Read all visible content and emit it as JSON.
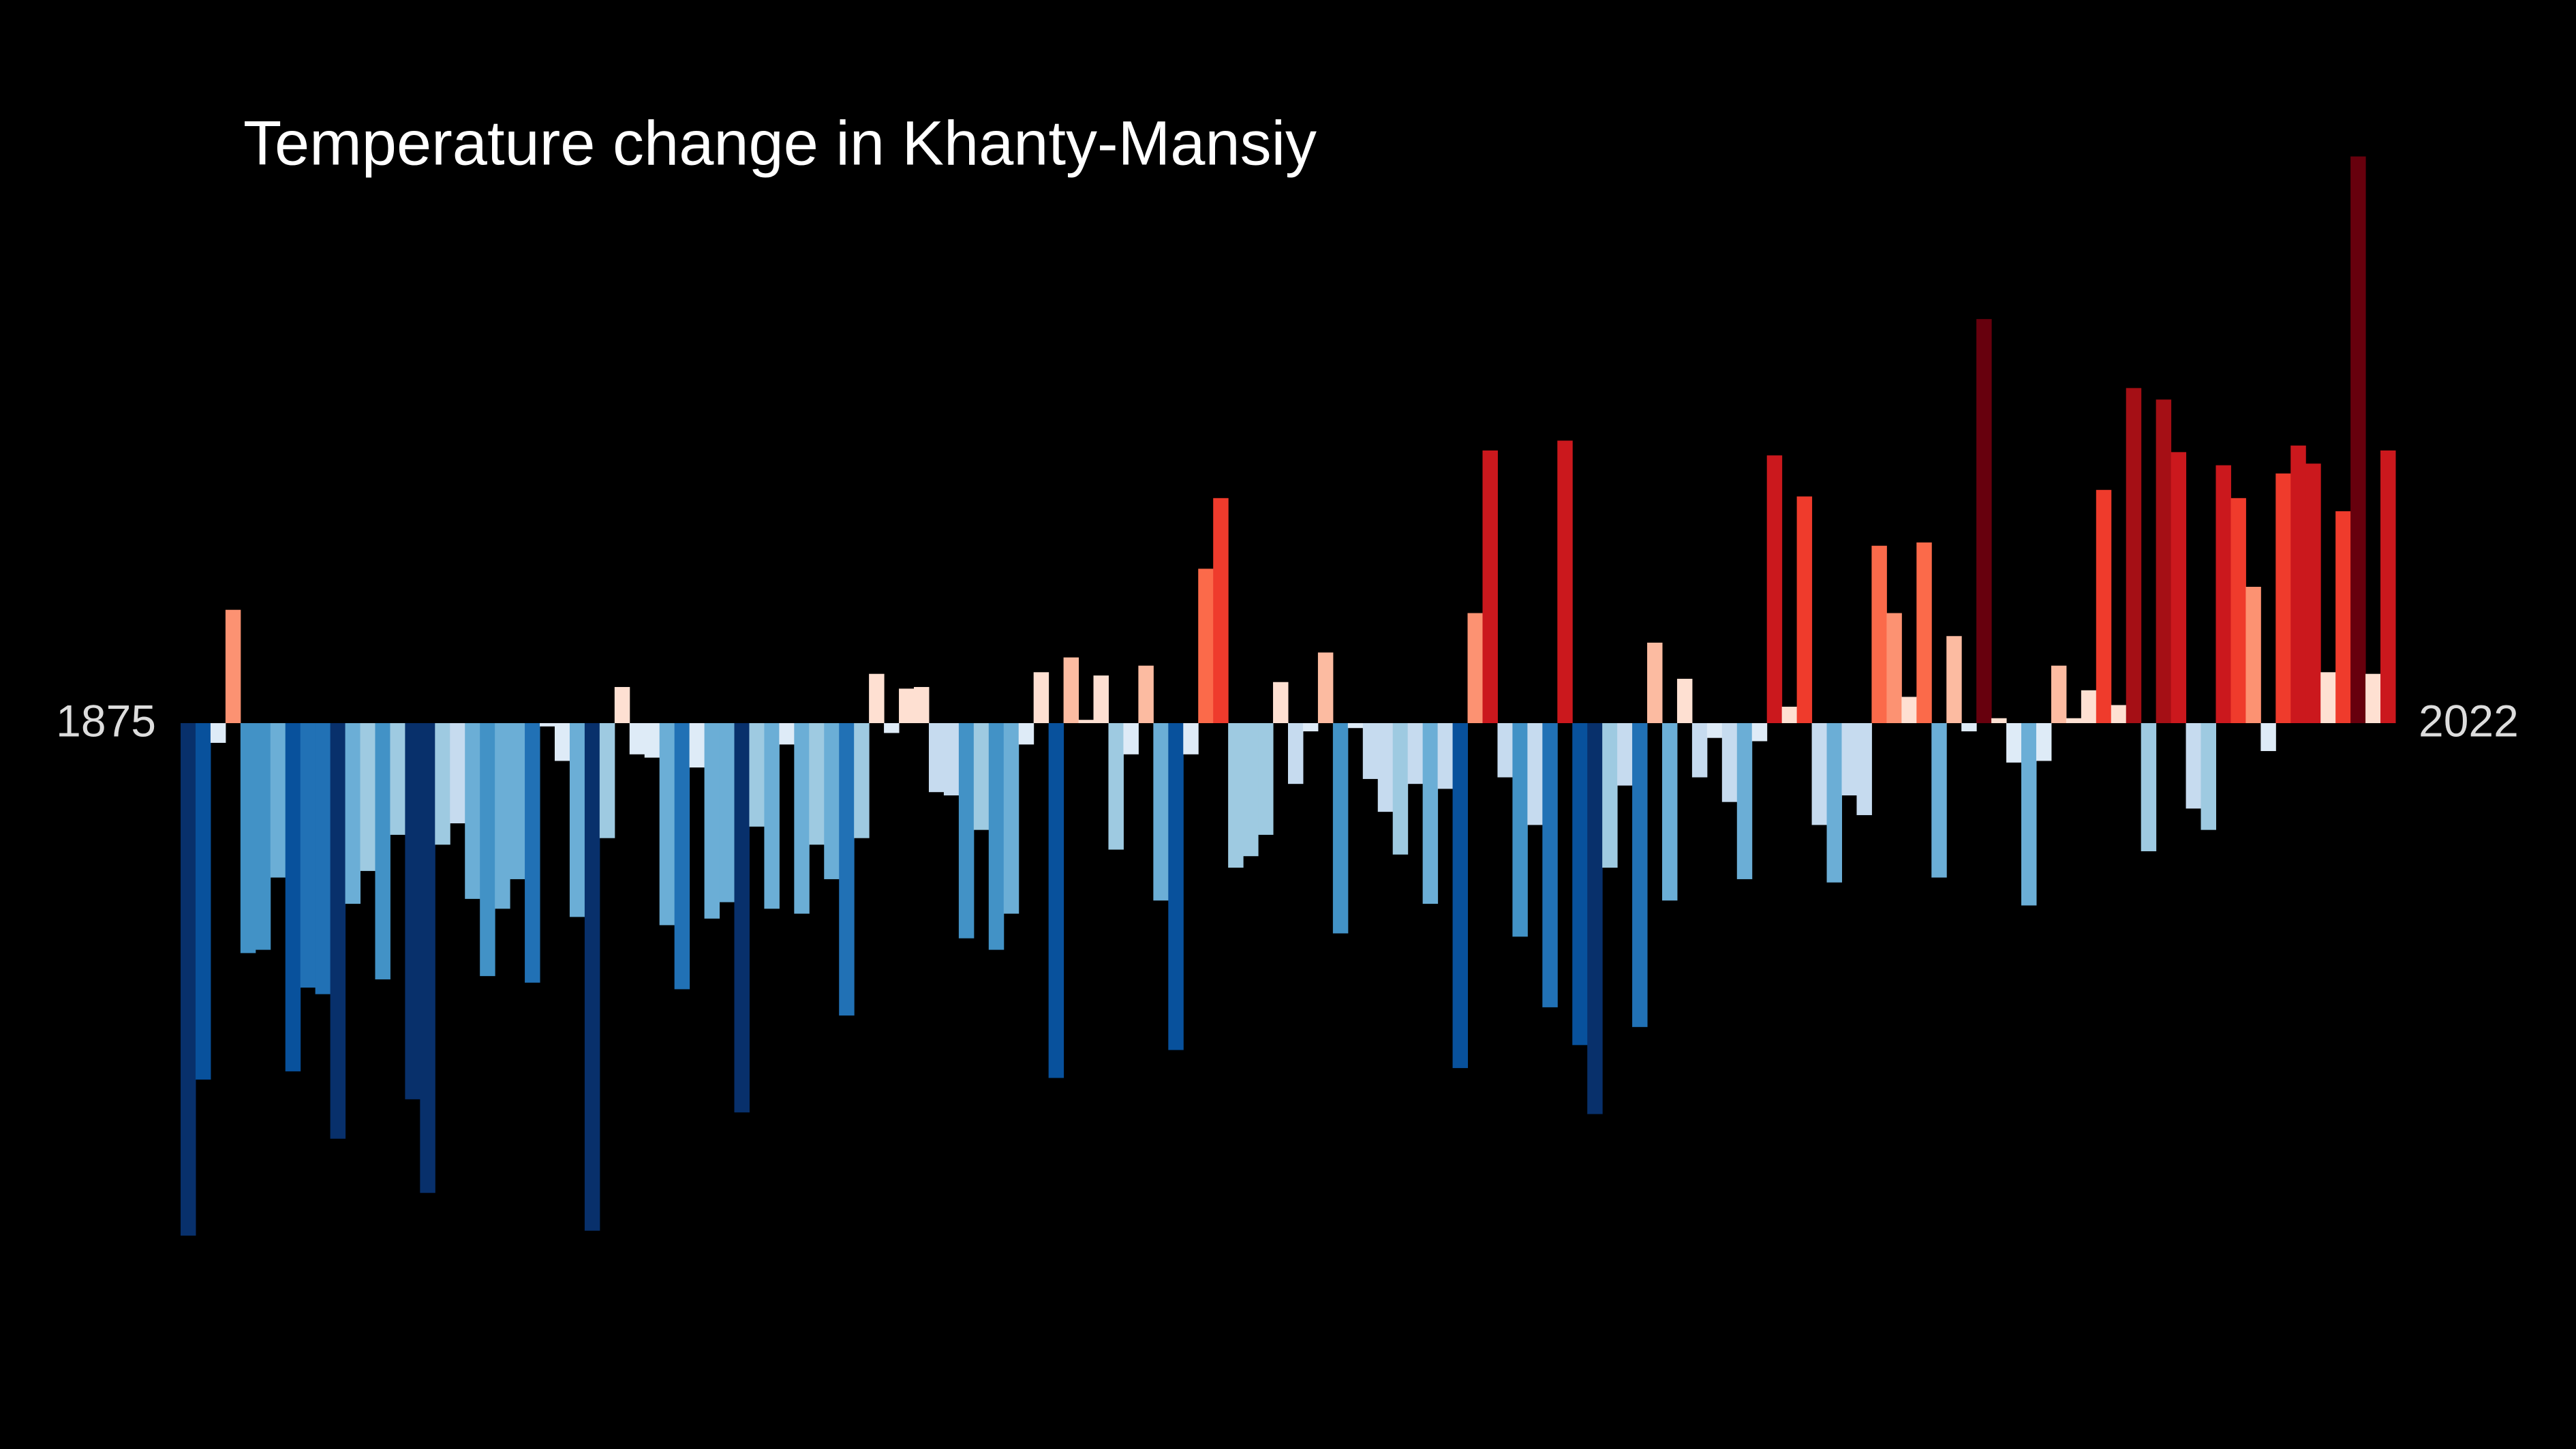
{
  "chart_data": {
    "type": "bar",
    "title": "Temperature change in Khanty-Mansiy",
    "xlim": [
      1875,
      2022
    ],
    "values": [
      -3.12,
      -2.17,
      -0.12,
      0.69,
      -1.4,
      -1.38,
      -0.94,
      -2.12,
      -1.61,
      -1.65,
      -2.53,
      -1.1,
      -0.9,
      -1.56,
      -0.68,
      -2.29,
      -2.86,
      -0.74,
      -0.61,
      -1.07,
      -1.54,
      -1.13,
      -0.95,
      -1.58,
      -0.02,
      -0.23,
      -1.18,
      -3.09,
      -0.7,
      0.22,
      -0.19,
      -0.21,
      -1.23,
      -1.62,
      -0.27,
      -1.19,
      -1.09,
      -2.37,
      -0.63,
      -1.13,
      -0.13,
      -1.16,
      -0.74,
      -0.95,
      -1.78,
      -0.7,
      0.3,
      -0.06,
      0.21,
      0.22,
      -0.42,
      -0.44,
      -1.31,
      -0.65,
      -1.38,
      -1.16,
      -0.13,
      0.31,
      -2.16,
      0.4,
      0.02,
      0.29,
      -0.77,
      -0.19,
      0.35,
      -1.08,
      -1.99,
      -0.19,
      0.94,
      1.37,
      -0.88,
      -0.81,
      -0.68,
      0.25,
      -0.37,
      -0.05,
      0.43,
      -1.28,
      -0.03,
      -0.34,
      -0.54,
      -0.8,
      -0.37,
      -1.1,
      -0.4,
      -2.1,
      0.67,
      1.66,
      -0.33,
      -1.3,
      -0.62,
      -1.73,
      1.72,
      -1.96,
      -2.38,
      -0.88,
      -0.38,
      -1.85,
      0.49,
      -1.08,
      0.27,
      -0.33,
      -0.09,
      -0.48,
      -0.95,
      -0.11,
      1.63,
      0.1,
      1.38,
      -0.62,
      -0.97,
      -0.44,
      -0.56,
      1.08,
      0.67,
      0.16,
      1.1,
      -0.94,
      0.53,
      -0.05,
      2.46,
      0.03,
      -0.24,
      -1.11,
      -0.23,
      0.35,
      0.03,
      0.2,
      1.42,
      0.11,
      2.04,
      -0.78,
      1.97,
      1.65,
      -0.52,
      -0.65,
      1.57,
      1.37,
      0.83,
      -0.17,
      1.52,
      1.69,
      1.58,
      0.31,
      1.29,
      3.45,
      0.3,
      1.66
    ],
    "colors": {
      "negative": [
        "#deebf7",
        "#c6dbef",
        "#9ecae1",
        "#6baed6",
        "#4292c6",
        "#2171b5",
        "#08519c",
        "#08306b"
      ],
      "positive": [
        "#fee0d2",
        "#fcbba1",
        "#fc9272",
        "#fb6a4a",
        "#ef3b2c",
        "#cb181d",
        "#a50f15",
        "#67000d"
      ]
    },
    "background": "#000000"
  }
}
